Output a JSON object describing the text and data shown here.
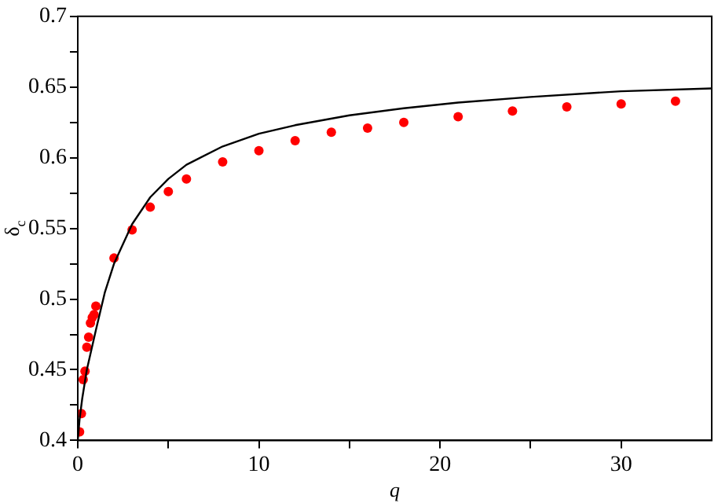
{
  "chart_data": {
    "type": "scatter",
    "xlabel": "q",
    "ylabel": "δ$_{c}$",
    "xlim": [
      0,
      35
    ],
    "ylim": [
      0.4,
      0.7
    ],
    "xticks": [
      0,
      {
        "value": 5,
        "label": null
      },
      10,
      {
        "value": 15,
        "label": null
      },
      20,
      {
        "value": 25,
        "label": null
      },
      30
    ],
    "yticks": [
      0.4,
      {
        "value": 0.425,
        "label": null
      },
      0.45,
      {
        "value": 0.475,
        "label": null
      },
      0.5,
      {
        "value": 0.525,
        "label": null
      },
      0.55,
      {
        "value": 0.575,
        "label": null
      },
      0.6,
      {
        "value": 0.625,
        "label": null
      },
      0.65,
      {
        "value": 0.675,
        "label": null
      },
      0.7
    ],
    "grid": false,
    "legend": false,
    "marker": "circle",
    "series": [
      {
        "type": "line",
        "color": "#000000",
        "marker": "none",
        "line_style": "solid",
        "x": [
          0,
          0.1,
          0.25,
          0.5,
          1,
          1.5,
          2,
          3,
          4,
          5,
          6,
          8,
          10,
          12,
          15,
          18,
          21,
          25,
          30,
          35
        ],
        "values": [
          0.4,
          0.415,
          0.43,
          0.45,
          0.478,
          0.505,
          0.525,
          0.553,
          0.572,
          0.585,
          0.595,
          0.608,
          0.617,
          0.623,
          0.63,
          0.635,
          0.639,
          0.643,
          0.647,
          0.649
        ]
      },
      {
        "color": "#ff0000",
        "x": [
          0.1,
          0.2,
          0.3,
          0.4,
          0.5,
          0.6,
          0.7,
          0.8,
          0.9,
          1,
          2,
          3,
          4,
          5,
          6,
          8,
          10,
          12,
          14,
          16,
          18,
          21,
          24,
          27,
          30,
          33
        ],
        "values": [
          0.406,
          0.419,
          0.443,
          0.449,
          0.466,
          0.473,
          0.483,
          0.487,
          0.489,
          0.495,
          0.529,
          0.549,
          0.565,
          0.576,
          0.585,
          0.597,
          0.605,
          0.612,
          0.618,
          0.621,
          0.625,
          0.629,
          0.633,
          0.636,
          0.638,
          0.64
        ]
      }
    ]
  }
}
